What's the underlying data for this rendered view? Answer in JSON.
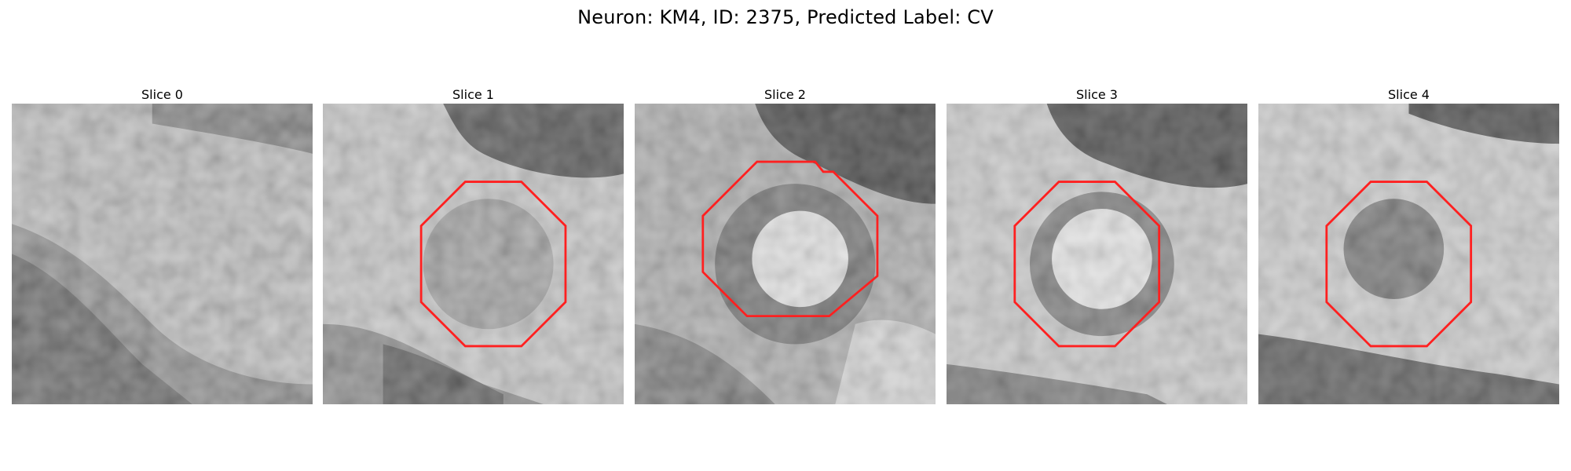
{
  "figure": {
    "title": "Neuron: KM4, ID: 2375, Predicted Label: CV"
  },
  "colors": {
    "outline": "#ff2020",
    "background": "#ffffff"
  },
  "slices": [
    {
      "label": "Slice 0",
      "has_outline": false,
      "contour_shape": "none"
    },
    {
      "label": "Slice 1",
      "has_outline": true,
      "contour_shape": "octagon"
    },
    {
      "label": "Slice 2",
      "has_outline": true,
      "contour_shape": "irregular-octagon"
    },
    {
      "label": "Slice 3",
      "has_outline": true,
      "contour_shape": "octagon"
    },
    {
      "label": "Slice 4",
      "has_outline": true,
      "contour_shape": "octagon"
    }
  ]
}
